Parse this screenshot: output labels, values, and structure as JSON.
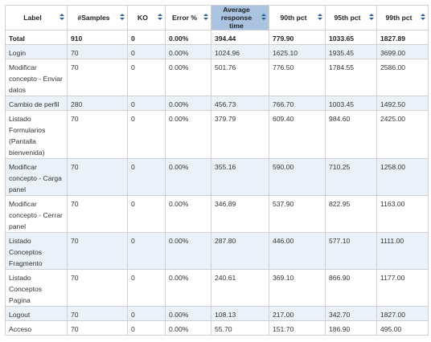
{
  "table": {
    "columns": [
      "Label",
      "#Samples",
      "KO",
      "Error %",
      "Average response time",
      "90th pct",
      "95th pct",
      "99th pct"
    ],
    "rows": [
      [
        "Total",
        "910",
        "0",
        "0.00%",
        "394.44",
        "779.90",
        "1033.65",
        "1827.89"
      ],
      [
        "Login",
        "70",
        "0",
        "0.00%",
        "1024.96",
        "1625.10",
        "1935.45",
        "3699.00"
      ],
      [
        "Modificar concepto - Enviar datos",
        "70",
        "0",
        "0.00%",
        "501.76",
        "776.50",
        "1784.55",
        "2586.00"
      ],
      [
        "Cambio de perfil",
        "280",
        "0",
        "0.00%",
        "456.73",
        "766.70",
        "1003.45",
        "1492.50"
      ],
      [
        "Listado Formularios (Pantalla bienvenida)",
        "70",
        "0",
        "0.00%",
        "379.79",
        "609.40",
        "984.60",
        "2425.00"
      ],
      [
        "Modificar concepto - Carga panel",
        "70",
        "0",
        "0.00%",
        "355.16",
        "590.00",
        "710.25",
        "1258.00"
      ],
      [
        "Modificar concepto - Cerrar panel",
        "70",
        "0",
        "0.00%",
        "346.89",
        "537.90",
        "822.95",
        "1163.00"
      ],
      [
        "Listado Conceptos Fragmento",
        "70",
        "0",
        "0.00%",
        "287.80",
        "446.00",
        "577.10",
        "1111.00"
      ],
      [
        "Listado Conceptos Pagina",
        "70",
        "0",
        "0.00%",
        "240.61",
        "369.10",
        "866.90",
        "1177.00"
      ],
      [
        "Logout",
        "70",
        "0",
        "0.00%",
        "108.13",
        "217.00",
        "342.70",
        "1827.00"
      ],
      [
        "Acceso",
        "70",
        "0",
        "0.00%",
        "55.70",
        "151.70",
        "186.90",
        "495.00"
      ]
    ],
    "sorted_column": "Average response time",
    "colors": {
      "header_sorted": "#a9c3e1",
      "row_alt": "#eaf1f9",
      "sort_icon": "#2b5f95"
    }
  }
}
